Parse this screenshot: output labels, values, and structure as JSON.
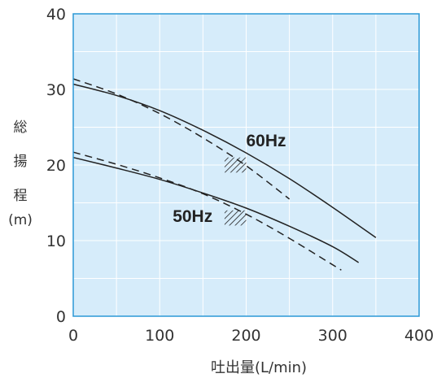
{
  "chart_data": {
    "type": "line",
    "xlabel": "吐出量(L/min)",
    "ylabel_chars": [
      "総",
      "揚",
      "程",
      "(m)"
    ],
    "xlim": [
      0,
      400
    ],
    "ylim": [
      0,
      40
    ],
    "x_ticks": [
      "0",
      "100",
      "200",
      "300",
      "400"
    ],
    "y_ticks": [
      "0",
      "10",
      "20",
      "30",
      "40"
    ],
    "grid": true,
    "colors": {
      "plot_bg": "#d6ecfa",
      "axis": "#2b98d6",
      "grid": "#ffffff",
      "line": "#222222"
    },
    "series": [
      {
        "name": "60Hz",
        "style": "solid",
        "x": [
          0,
          50,
          100,
          150,
          200,
          250,
          300,
          350
        ],
        "y": [
          30.7,
          29.2,
          27.2,
          24.6,
          21.6,
          18.2,
          14.4,
          10.4
        ]
      },
      {
        "name": "",
        "style": "dashed",
        "group": "60Hz",
        "x": [
          0,
          50,
          100,
          150,
          200,
          250
        ],
        "y": [
          31.4,
          29.4,
          26.8,
          23.6,
          19.9,
          15.5
        ]
      },
      {
        "name": "50Hz",
        "style": "solid",
        "x": [
          0,
          50,
          100,
          150,
          200,
          250,
          300,
          330
        ],
        "y": [
          21.0,
          19.6,
          18.1,
          16.3,
          14.3,
          11.9,
          9.2,
          7.1
        ]
      },
      {
        "name": "",
        "style": "dashed",
        "group": "50Hz",
        "x": [
          0,
          50,
          100,
          150,
          200,
          250,
          310
        ],
        "y": [
          21.7,
          20.1,
          18.3,
          16.2,
          13.5,
          10.3,
          6.1
        ]
      }
    ],
    "operating_zones": [
      {
        "group": "60Hz",
        "x": [
          175,
          200
        ],
        "y": [
          19.0,
          21.0
        ]
      },
      {
        "group": "50Hz",
        "x": [
          175,
          200
        ],
        "y": [
          12.0,
          14.0
        ]
      }
    ],
    "annotations": [
      {
        "text": "60Hz",
        "x": 200,
        "y": 22.5
      },
      {
        "text": "50Hz",
        "x": 115,
        "y": 12.5
      }
    ]
  }
}
